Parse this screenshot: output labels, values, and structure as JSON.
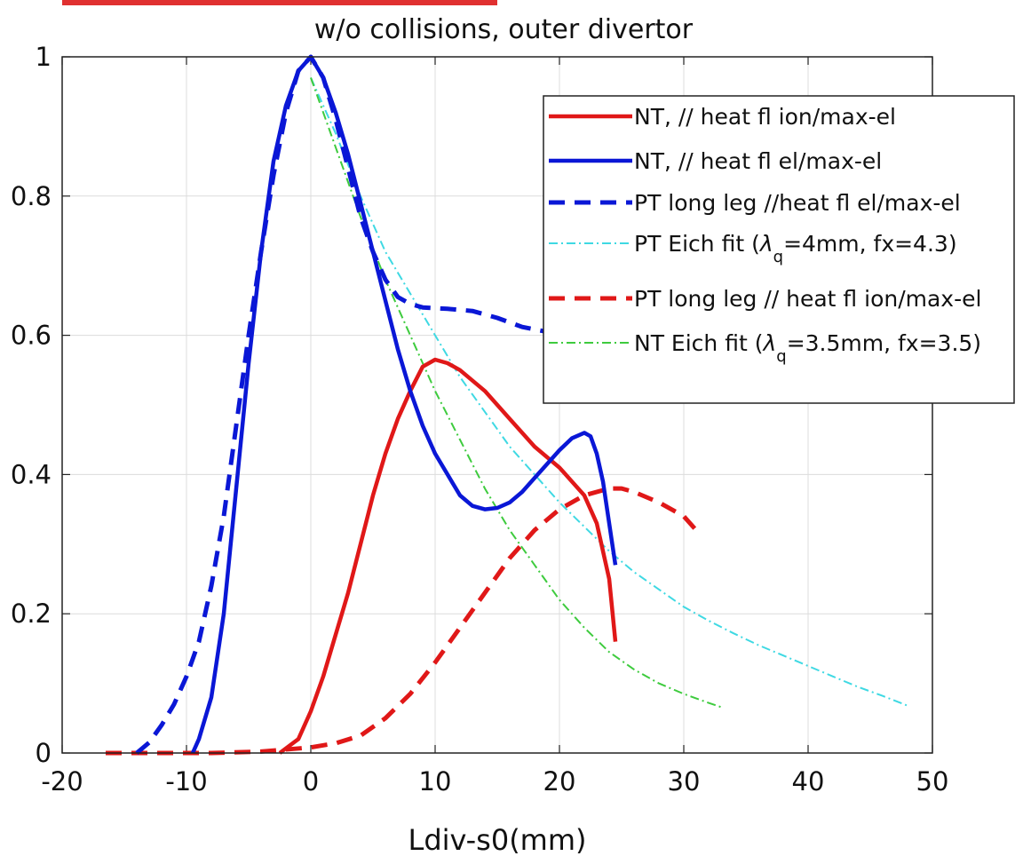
{
  "chart_data": {
    "type": "line",
    "title": "w/o collisions, outer divertor",
    "xlabel": "Ldiv-s0(mm)",
    "ylabel": "",
    "xlim": [
      -20,
      50
    ],
    "ylim": [
      0,
      1
    ],
    "grid": true,
    "legend_position": "top-right",
    "x_ticks": [
      "-20",
      "-10",
      "0",
      "10",
      "20",
      "30",
      "40",
      "50"
    ],
    "y_ticks": [
      "0",
      "0.2",
      "0.4",
      "0.6",
      "0.8",
      "1"
    ],
    "series": [
      {
        "name": "NT, // heat fl ion/max-el",
        "label_parts": [
          "NT, // heat fl ion/max-el"
        ],
        "color": "#e01818",
        "style": "solid",
        "points": [
          [
            -2.5,
            0
          ],
          [
            -1,
            0.02
          ],
          [
            0,
            0.06
          ],
          [
            1,
            0.11
          ],
          [
            2,
            0.17
          ],
          [
            3,
            0.23
          ],
          [
            4,
            0.3
          ],
          [
            5,
            0.37
          ],
          [
            6,
            0.43
          ],
          [
            7,
            0.48
          ],
          [
            8,
            0.52
          ],
          [
            9,
            0.555
          ],
          [
            10,
            0.565
          ],
          [
            11,
            0.56
          ],
          [
            12,
            0.55
          ],
          [
            14,
            0.52
          ],
          [
            16,
            0.48
          ],
          [
            18,
            0.44
          ],
          [
            20,
            0.41
          ],
          [
            21,
            0.39
          ],
          [
            22,
            0.37
          ],
          [
            23,
            0.33
          ],
          [
            24,
            0.25
          ],
          [
            24.5,
            0.16
          ]
        ]
      },
      {
        "name": "NT, // heat fl el/max-el",
        "label_parts": [
          "NT, // heat fl el/max-el"
        ],
        "color": "#0a17d6",
        "style": "solid",
        "points": [
          [
            -9.5,
            0
          ],
          [
            -9,
            0.02
          ],
          [
            -8,
            0.08
          ],
          [
            -7,
            0.2
          ],
          [
            -6,
            0.38
          ],
          [
            -5,
            0.56
          ],
          [
            -4,
            0.72
          ],
          [
            -3,
            0.85
          ],
          [
            -2,
            0.93
          ],
          [
            -1,
            0.98
          ],
          [
            0,
            1
          ],
          [
            1,
            0.97
          ],
          [
            2,
            0.92
          ],
          [
            3,
            0.86
          ],
          [
            4,
            0.79
          ],
          [
            5,
            0.72
          ],
          [
            6,
            0.65
          ],
          [
            7,
            0.58
          ],
          [
            8,
            0.52
          ],
          [
            9,
            0.47
          ],
          [
            10,
            0.43
          ],
          [
            11,
            0.4
          ],
          [
            12,
            0.37
          ],
          [
            13,
            0.355
          ],
          [
            14,
            0.35
          ],
          [
            15,
            0.352
          ],
          [
            16,
            0.36
          ],
          [
            17,
            0.375
          ],
          [
            18,
            0.395
          ],
          [
            19,
            0.415
          ],
          [
            20,
            0.435
          ],
          [
            21,
            0.452
          ],
          [
            22,
            0.46
          ],
          [
            22.5,
            0.455
          ],
          [
            23,
            0.43
          ],
          [
            23.5,
            0.39
          ],
          [
            24,
            0.33
          ],
          [
            24.5,
            0.27
          ]
        ]
      },
      {
        "name": "PT long leg //heat fl el/max-el",
        "label_parts": [
          "PT long leg //heat fl el/max-el"
        ],
        "color": "#0a17d6",
        "style": "dashed",
        "points": [
          [
            -14,
            0
          ],
          [
            -13,
            0.015
          ],
          [
            -12,
            0.04
          ],
          [
            -11,
            0.07
          ],
          [
            -10,
            0.11
          ],
          [
            -9,
            0.16
          ],
          [
            -8,
            0.24
          ],
          [
            -7,
            0.34
          ],
          [
            -6,
            0.47
          ],
          [
            -5,
            0.6
          ],
          [
            -4,
            0.72
          ],
          [
            -3,
            0.83
          ],
          [
            -2,
            0.92
          ],
          [
            -1,
            0.98
          ],
          [
            0,
            1
          ],
          [
            1,
            0.97
          ],
          [
            2,
            0.91
          ],
          [
            3,
            0.84
          ],
          [
            4,
            0.77
          ],
          [
            5,
            0.72
          ],
          [
            6,
            0.68
          ],
          [
            7,
            0.655
          ],
          [
            8,
            0.645
          ],
          [
            9,
            0.64
          ],
          [
            11,
            0.638
          ],
          [
            13,
            0.635
          ],
          [
            15,
            0.625
          ],
          [
            17,
            0.612
          ],
          [
            19,
            0.605
          ],
          [
            21,
            0.6
          ],
          [
            22,
            0.598
          ]
        ]
      },
      {
        "name": "PT Eich fit (λq=4mm, fx=4.3)",
        "label_parts": [
          "PT Eich fit (",
          "λ",
          "q",
          "=4mm, fx=4.3)"
        ],
        "color": "#3fd9e3",
        "style": "dashdot",
        "points": [
          [
            0,
            0.97
          ],
          [
            2,
            0.89
          ],
          [
            4,
            0.8
          ],
          [
            6,
            0.72
          ],
          [
            8,
            0.66
          ],
          [
            10,
            0.6
          ],
          [
            12,
            0.54
          ],
          [
            14,
            0.49
          ],
          [
            16,
            0.44
          ],
          [
            18,
            0.4
          ],
          [
            20,
            0.36
          ],
          [
            22,
            0.325
          ],
          [
            24,
            0.29
          ],
          [
            26,
            0.26
          ],
          [
            28,
            0.235
          ],
          [
            30,
            0.21
          ],
          [
            32,
            0.19
          ],
          [
            34,
            0.172
          ],
          [
            36,
            0.155
          ],
          [
            38,
            0.14
          ],
          [
            40,
            0.125
          ],
          [
            42,
            0.11
          ],
          [
            44,
            0.095
          ],
          [
            46,
            0.082
          ],
          [
            48,
            0.068
          ]
        ]
      },
      {
        "name": "PT long leg // heat fl ion/max-el",
        "label_parts": [
          "PT long leg // heat fl ion/max-el"
        ],
        "color": "#e01818",
        "style": "dashed",
        "points": [
          [
            -16.5,
            0
          ],
          [
            -12,
            0
          ],
          [
            -8,
            0
          ],
          [
            -4,
            0.002
          ],
          [
            0,
            0.008
          ],
          [
            2,
            0.014
          ],
          [
            4,
            0.025
          ],
          [
            6,
            0.05
          ],
          [
            8,
            0.085
          ],
          [
            10,
            0.13
          ],
          [
            12,
            0.18
          ],
          [
            14,
            0.23
          ],
          [
            16,
            0.28
          ],
          [
            18,
            0.32
          ],
          [
            20,
            0.35
          ],
          [
            22,
            0.37
          ],
          [
            24,
            0.38
          ],
          [
            25,
            0.38
          ],
          [
            26,
            0.375
          ],
          [
            28,
            0.36
          ],
          [
            30,
            0.34
          ],
          [
            31,
            0.32
          ]
        ]
      },
      {
        "name": "NT Eich fit (λq=3.5mm, fx=3.5)",
        "label_parts": [
          "NT Eich fit (",
          "λ",
          "q",
          "=3.5mm, fx=3.5)"
        ],
        "color": "#3ecb3e",
        "style": "dashdot",
        "points": [
          [
            0,
            0.97
          ],
          [
            2,
            0.87
          ],
          [
            4,
            0.77
          ],
          [
            6,
            0.68
          ],
          [
            8,
            0.6
          ],
          [
            10,
            0.52
          ],
          [
            12,
            0.45
          ],
          [
            14,
            0.38
          ],
          [
            16,
            0.32
          ],
          [
            18,
            0.27
          ],
          [
            20,
            0.22
          ],
          [
            22,
            0.18
          ],
          [
            24,
            0.145
          ],
          [
            26,
            0.12
          ],
          [
            28,
            0.1
          ],
          [
            30,
            0.085
          ],
          [
            32,
            0.072
          ],
          [
            33,
            0.066
          ]
        ]
      }
    ]
  }
}
